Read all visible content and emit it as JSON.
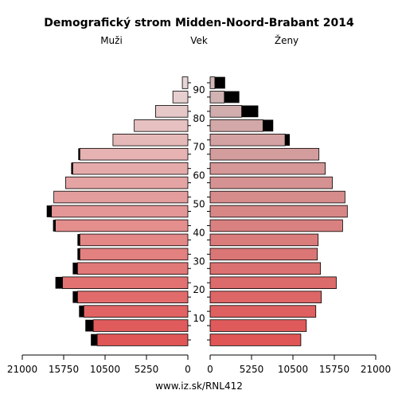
{
  "chart_data": {
    "type": "bar",
    "title": "Demografický strom Midden-Noord-Brabant 2014",
    "left_label": "Muži",
    "center_label": "Vek",
    "right_label": "Ženy",
    "footer": "www.iz.sk/RNL412",
    "age_ticks": [
      10,
      20,
      30,
      40,
      50,
      60,
      70,
      80,
      90
    ],
    "x_ticks_left": [
      "21000",
      "15750",
      "10500",
      "5250",
      "0"
    ],
    "x_ticks_right": [
      "0",
      "5250",
      "10500",
      "15750",
      "21000"
    ],
    "xlim": [
      0,
      21000
    ],
    "age_groups": [
      "0-4",
      "5-9",
      "10-14",
      "15-19",
      "20-24",
      "25-29",
      "30-34",
      "35-39",
      "40-44",
      "45-49",
      "50-54",
      "55-59",
      "60-64",
      "65-69",
      "70-74",
      "75-79",
      "80-84",
      "85-89",
      "90+"
    ],
    "series": [
      {
        "name": "Muži",
        "values": [
          11500,
          12000,
          13200,
          14000,
          15900,
          14000,
          13700,
          13700,
          16800,
          17300,
          17000,
          15500,
          14600,
          13700,
          9500,
          6800,
          4100,
          1900,
          700
        ]
      },
      {
        "name": "Ženy",
        "values": [
          11500,
          12200,
          13400,
          14100,
          16000,
          14000,
          13600,
          13700,
          16800,
          17400,
          17100,
          15500,
          14600,
          13800,
          9500,
          6700,
          4000,
          1800,
          600
        ]
      }
    ],
    "excess_male": [
      800,
      1000,
      600,
      600,
      900,
      600,
      300,
      300,
      300,
      600,
      0,
      0,
      200,
      200,
      0,
      0,
      0,
      0,
      0
    ],
    "excess_female": [
      0,
      0,
      0,
      0,
      0,
      0,
      0,
      0,
      0,
      0,
      0,
      0,
      0,
      0,
      600,
      1300,
      2100,
      1900,
      1300
    ],
    "colors": {
      "male_bottom": "#e05555",
      "male_top": "#e8d6d6",
      "female_bottom": "#e05555",
      "female_top": "#d0b8b8",
      "excess": "#000000",
      "axis": "#000000"
    }
  }
}
